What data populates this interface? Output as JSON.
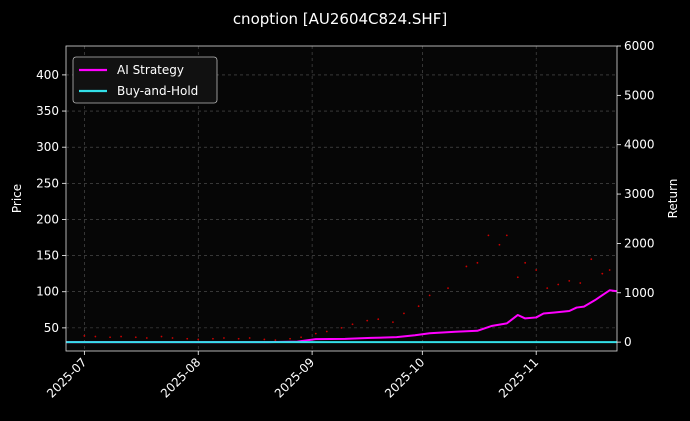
{
  "chart_data": {
    "type": "line",
    "title": "cnoption [AU2604C824.SHF]",
    "x_axis": {
      "type": "date",
      "range": [
        "2025-06-26",
        "2025-11-23"
      ],
      "ticks": [
        "2025-07",
        "2025-08",
        "2025-09",
        "2025-10",
        "2025-11"
      ]
    },
    "y_left": {
      "label": "Price",
      "range": [
        18,
        440
      ],
      "ticks": [
        50,
        100,
        150,
        200,
        250,
        300,
        350,
        400
      ]
    },
    "y_right": {
      "label": "Return",
      "range": [
        -180,
        6000
      ],
      "ticks": [
        0,
        1000,
        2000,
        3000,
        4000,
        5000,
        6000
      ]
    },
    "grid": true,
    "legend_placement": "top-left",
    "series": [
      {
        "name": "AI Strategy",
        "axis": "right",
        "color": "#ff00ff",
        "points": [
          [
            "2025-06-26",
            0
          ],
          [
            "2025-07-15",
            0
          ],
          [
            "2025-08-01",
            0
          ],
          [
            "2025-08-20",
            0
          ],
          [
            "2025-08-28",
            10
          ],
          [
            "2025-09-02",
            60
          ],
          [
            "2025-09-10",
            65
          ],
          [
            "2025-09-17",
            85
          ],
          [
            "2025-09-24",
            100
          ],
          [
            "2025-09-29",
            140
          ],
          [
            "2025-10-03",
            180
          ],
          [
            "2025-10-10",
            210
          ],
          [
            "2025-10-16",
            230
          ],
          [
            "2025-10-20",
            330
          ],
          [
            "2025-10-24",
            380
          ],
          [
            "2025-10-27",
            550
          ],
          [
            "2025-10-29",
            480
          ],
          [
            "2025-11-01",
            500
          ],
          [
            "2025-11-03",
            580
          ],
          [
            "2025-11-06",
            600
          ],
          [
            "2025-11-10",
            630
          ],
          [
            "2025-11-12",
            700
          ],
          [
            "2025-11-14",
            720
          ],
          [
            "2025-11-17",
            850
          ],
          [
            "2025-11-19",
            950
          ],
          [
            "2025-11-21",
            1050
          ],
          [
            "2025-11-23",
            1030
          ]
        ]
      },
      {
        "name": "Buy-and-Hold",
        "axis": "right",
        "color": "#33e0e8",
        "points": [
          [
            "2025-06-26",
            0
          ],
          [
            "2025-11-23",
            0
          ]
        ]
      },
      {
        "name": "",
        "axis": "left",
        "color": "#cc0000",
        "kind": "scatter",
        "points": [
          [
            "2025-07-01",
            39
          ],
          [
            "2025-07-04",
            38
          ],
          [
            "2025-07-08",
            37
          ],
          [
            "2025-07-11",
            38
          ],
          [
            "2025-07-15",
            37
          ],
          [
            "2025-07-18",
            36
          ],
          [
            "2025-07-22",
            38
          ],
          [
            "2025-07-25",
            36
          ],
          [
            "2025-07-29",
            35
          ],
          [
            "2025-08-01",
            34
          ],
          [
            "2025-08-05",
            35
          ],
          [
            "2025-08-08",
            36
          ],
          [
            "2025-08-12",
            35
          ],
          [
            "2025-08-15",
            36
          ],
          [
            "2025-08-19",
            34
          ],
          [
            "2025-08-22",
            33
          ],
          [
            "2025-08-26",
            35
          ],
          [
            "2025-08-29",
            37
          ],
          [
            "2025-09-02",
            42
          ],
          [
            "2025-09-05",
            45
          ],
          [
            "2025-09-09",
            50
          ],
          [
            "2025-09-12",
            55
          ],
          [
            "2025-09-16",
            60
          ],
          [
            "2025-09-19",
            62
          ],
          [
            "2025-09-23",
            58
          ],
          [
            "2025-09-26",
            70
          ],
          [
            "2025-09-30",
            80
          ],
          [
            "2025-10-03",
            95
          ],
          [
            "2025-10-08",
            105
          ],
          [
            "2025-10-13",
            135
          ],
          [
            "2025-10-16",
            140
          ],
          [
            "2025-10-19",
            178
          ],
          [
            "2025-10-22",
            165
          ],
          [
            "2025-10-24",
            178
          ],
          [
            "2025-10-27",
            120
          ],
          [
            "2025-10-29",
            140
          ],
          [
            "2025-11-01",
            130
          ],
          [
            "2025-11-04",
            105
          ],
          [
            "2025-11-07",
            110
          ],
          [
            "2025-11-10",
            115
          ],
          [
            "2025-11-13",
            112
          ],
          [
            "2025-11-16",
            145
          ],
          [
            "2025-11-19",
            125
          ],
          [
            "2025-11-21",
            130
          ]
        ]
      }
    ]
  }
}
